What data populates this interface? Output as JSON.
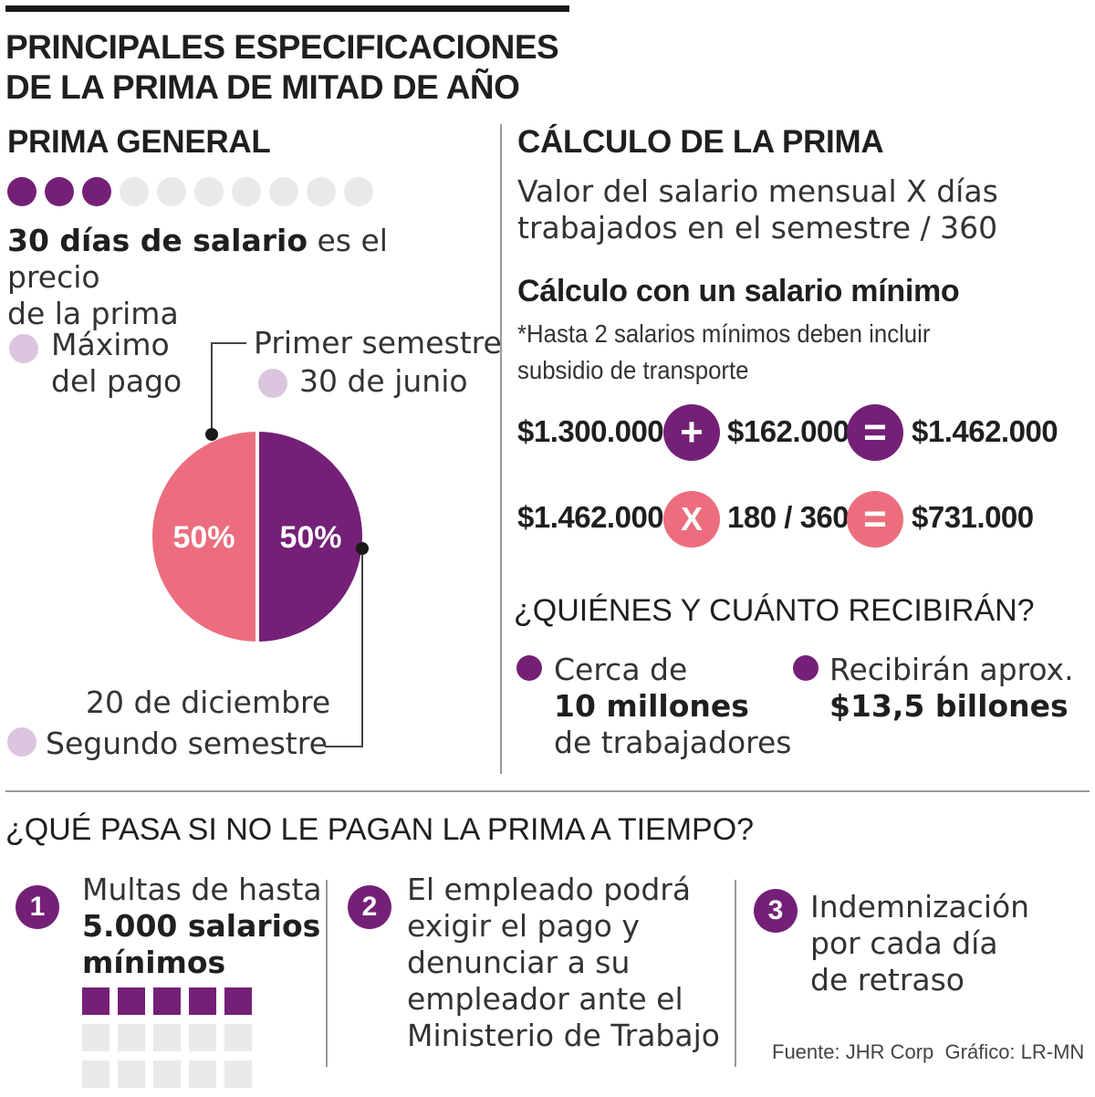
{
  "colors": {
    "purple": "#742077",
    "pink": "#ec6e7e",
    "lilac": "#dcc5df",
    "gray": "#e9e9e9"
  },
  "title": {
    "line1": "PRINCIPALES ESPECIFICACIONES",
    "line2": "DE LA PRIMA DE MITAD DE AÑO"
  },
  "general": {
    "heading": "PRIMA GENERAL",
    "dots_filled": 3,
    "dots_total": 10,
    "desc_bold": "30 días de salario",
    "desc_rest": " es el precio",
    "desc_line2": "de la prima",
    "legend_max": {
      "line1": "Máximo",
      "line2": "del pago"
    },
    "first": {
      "label": "Primer semestre",
      "date": "30 de junio"
    },
    "second": {
      "date": "20 de diciembre",
      "label": "Segundo semestre"
    }
  },
  "chart_data": {
    "type": "pie",
    "labels": [
      "Primer semestre",
      "Segundo semestre"
    ],
    "values": [
      50,
      50
    ],
    "value_labels": [
      "50%",
      "50%"
    ],
    "colors": [
      "#742077",
      "#ec6e7e"
    ]
  },
  "calculo": {
    "heading": "CÁLCULO DE LA PRIMA",
    "formula_line1": "Valor del salario mensual X días",
    "formula_line2": "trabajados en el semestre / 360",
    "sub_heading": "Cálculo con un salario mínimo",
    "note_line1": "*Hasta 2 salarios mínimos deben incluir",
    "note_line2": "subsidio de transporte",
    "row1": {
      "a": "$1.300.000",
      "op": "+",
      "b": "$162.000",
      "eq": "=",
      "result": "$1.462.000"
    },
    "row2": {
      "a": "$1.462.000",
      "op": "X",
      "b": "180 / 360",
      "eq": "=",
      "result": "$731.000"
    }
  },
  "quienes": {
    "heading": "¿QUIÉNES Y CUÁNTO RECIBIRÁN?",
    "item1": {
      "pre": "Cerca de",
      "bold": "10 millones",
      "post": "de trabajadores"
    },
    "item2": {
      "pre": "Recibirán aprox.",
      "bold": "$13,5 billones"
    }
  },
  "bottom": {
    "heading": "¿QUÉ PASA SI NO LE PAGAN LA PRIMA A TIEMPO?",
    "step1": {
      "num": "1",
      "line1": "Multas de hasta",
      "bold1": "5.000 salarios",
      "bold2": "mínimos",
      "squares_filled": 5
    },
    "step2": {
      "num": "2",
      "lines": [
        "El empleado podrá",
        "exigir el pago y",
        "denunciar a su",
        "empleador ante el",
        "Ministerio de Trabajo"
      ]
    },
    "step3": {
      "num": "3",
      "lines": [
        "Indemnización",
        "por cada día",
        "de retraso"
      ]
    }
  },
  "source": "Fuente: JHR Corp  Gráfico: LR-MN"
}
